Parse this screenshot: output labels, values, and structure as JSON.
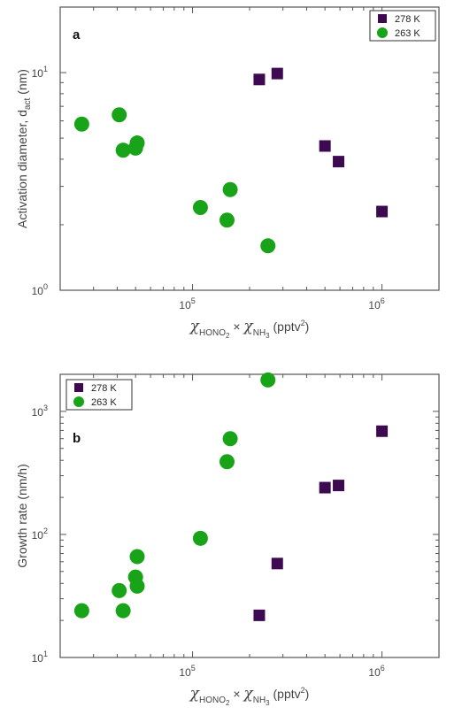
{
  "colors": {
    "k278": "#3d0a52",
    "k263": "#19a319"
  },
  "chart_data": [
    {
      "type": "scatter",
      "panel_label": "a",
      "xscale": "log",
      "yscale": "log",
      "xlim": [
        20000,
        2000000
      ],
      "ylim": [
        1,
        20
      ],
      "xticks": [
        {
          "value": 100000,
          "base": "10",
          "exp": "5"
        },
        {
          "value": 1000000,
          "base": "10",
          "exp": "6"
        }
      ],
      "yticks": [
        {
          "value": 1,
          "label": "10",
          "exp": "0"
        },
        {
          "value": 10,
          "label": "10",
          "exp": "1"
        }
      ],
      "xlabel": {
        "chi": "χ",
        "sub1": "HONO",
        "subsub": "2",
        "times": "×",
        "chi2": "χ",
        "sub2": "NH",
        "subsub2": "3",
        "unit": "(pptv",
        "unit_exp": "2",
        "unit_end": ")"
      },
      "ylabel": {
        "text": "Activation diameter, d",
        "sub": "act",
        "unit": " (nm)"
      },
      "legend": {
        "placement": "top-right",
        "entries": [
          "278 K",
          "263 K"
        ]
      },
      "series": [
        {
          "name": "278 K",
          "marker": "square",
          "points": [
            [
              225000,
              9.3
            ],
            [
              280000,
              9.9
            ],
            [
              500000,
              4.6
            ],
            [
              590000,
              3.9
            ],
            [
              1000000,
              2.3
            ]
          ]
        },
        {
          "name": "263 K",
          "marker": "circle",
          "points": [
            [
              26000,
              5.8
            ],
            [
              41000,
              6.4
            ],
            [
              43000,
              4.4
            ],
            [
              50000,
              4.5
            ],
            [
              51000,
              4.75
            ],
            [
              110000,
              2.4
            ],
            [
              152000,
              2.1
            ],
            [
              158000,
              2.9
            ],
            [
              250000,
              1.6
            ]
          ]
        }
      ]
    },
    {
      "type": "scatter",
      "panel_label": "b",
      "xscale": "log",
      "yscale": "log",
      "xlim": [
        20000,
        2000000
      ],
      "ylim": [
        10,
        2000
      ],
      "xticks": [
        {
          "value": 100000,
          "base": "10",
          "exp": "5"
        },
        {
          "value": 1000000,
          "base": "10",
          "exp": "6"
        }
      ],
      "yticks": [
        {
          "value": 10,
          "label": "10",
          "exp": "1"
        },
        {
          "value": 100,
          "label": "10",
          "exp": "2"
        },
        {
          "value": 1000,
          "label": "10",
          "exp": "3"
        }
      ],
      "xlabel": {
        "chi": "χ",
        "sub1": "HONO",
        "subsub": "2",
        "times": "×",
        "chi2": "χ",
        "sub2": "NH",
        "subsub2": "3",
        "unit": "(pptv",
        "unit_exp": "2",
        "unit_end": ")"
      },
      "ylabel": {
        "text": "Growth rate (nm/h)",
        "sub": "",
        "unit": ""
      },
      "legend": {
        "placement": "top-left",
        "entries": [
          "278 K",
          "263 K"
        ]
      },
      "series": [
        {
          "name": "278 K",
          "marker": "square",
          "points": [
            [
              225000,
              22
            ],
            [
              280000,
              58
            ],
            [
              500000,
              240
            ],
            [
              590000,
              250
            ],
            [
              1000000,
              690
            ]
          ]
        },
        {
          "name": "263 K",
          "marker": "circle",
          "points": [
            [
              26000,
              24
            ],
            [
              41000,
              35
            ],
            [
              43000,
              24
            ],
            [
              50000,
              45
            ],
            [
              51000,
              38
            ],
            [
              51000,
              66
            ],
            [
              110000,
              93
            ],
            [
              152000,
              390
            ],
            [
              158000,
              600
            ],
            [
              250000,
              1800
            ]
          ]
        }
      ]
    }
  ]
}
